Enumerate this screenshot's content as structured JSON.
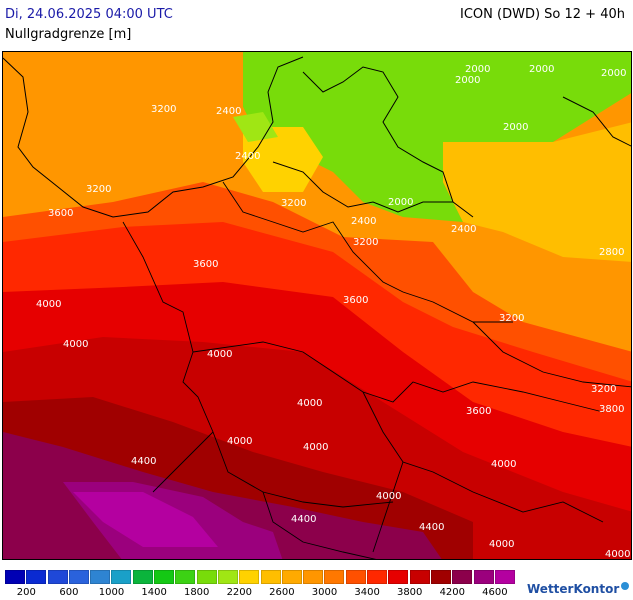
{
  "header": {
    "date": "Di, 24.06.2025 04:00 UTC",
    "model": "ICON (DWD) So 12 + 40h",
    "variable": "Nullgradgrenze [m]"
  },
  "legend": {
    "colors": [
      "#0000b4",
      "#0a2ad2",
      "#1f48d8",
      "#2a62dc",
      "#2e84d2",
      "#1aa0c8",
      "#0bb43c",
      "#14c814",
      "#3cd214",
      "#78dc0a",
      "#a0e614",
      "#ffd200",
      "#ffbe00",
      "#ffaa00",
      "#ff9600",
      "#ff7800",
      "#ff5000",
      "#ff2800",
      "#e60000",
      "#c80000",
      "#a00000",
      "#8c004b",
      "#9b007d",
      "#b400a0"
    ],
    "ticks": [
      "200",
      "600",
      "1000",
      "1400",
      "1800",
      "2200",
      "2600",
      "3000",
      "3400",
      "3800",
      "4200",
      "4600"
    ]
  },
  "brand": "WetterKontor",
  "isolines": [
    "2000",
    "2000",
    "2000",
    "2000",
    "2000",
    "2000",
    "2400",
    "2400",
    "2400",
    "2400",
    "2800",
    "3200",
    "3200",
    "3200",
    "3200",
    "3200",
    "3200",
    "3600",
    "3600",
    "3600",
    "3600",
    "3800",
    "4000",
    "4000",
    "4000",
    "4000",
    "4000",
    "4000",
    "4000",
    "4000",
    "4400",
    "4400",
    "4400",
    "4000",
    "4000"
  ]
}
